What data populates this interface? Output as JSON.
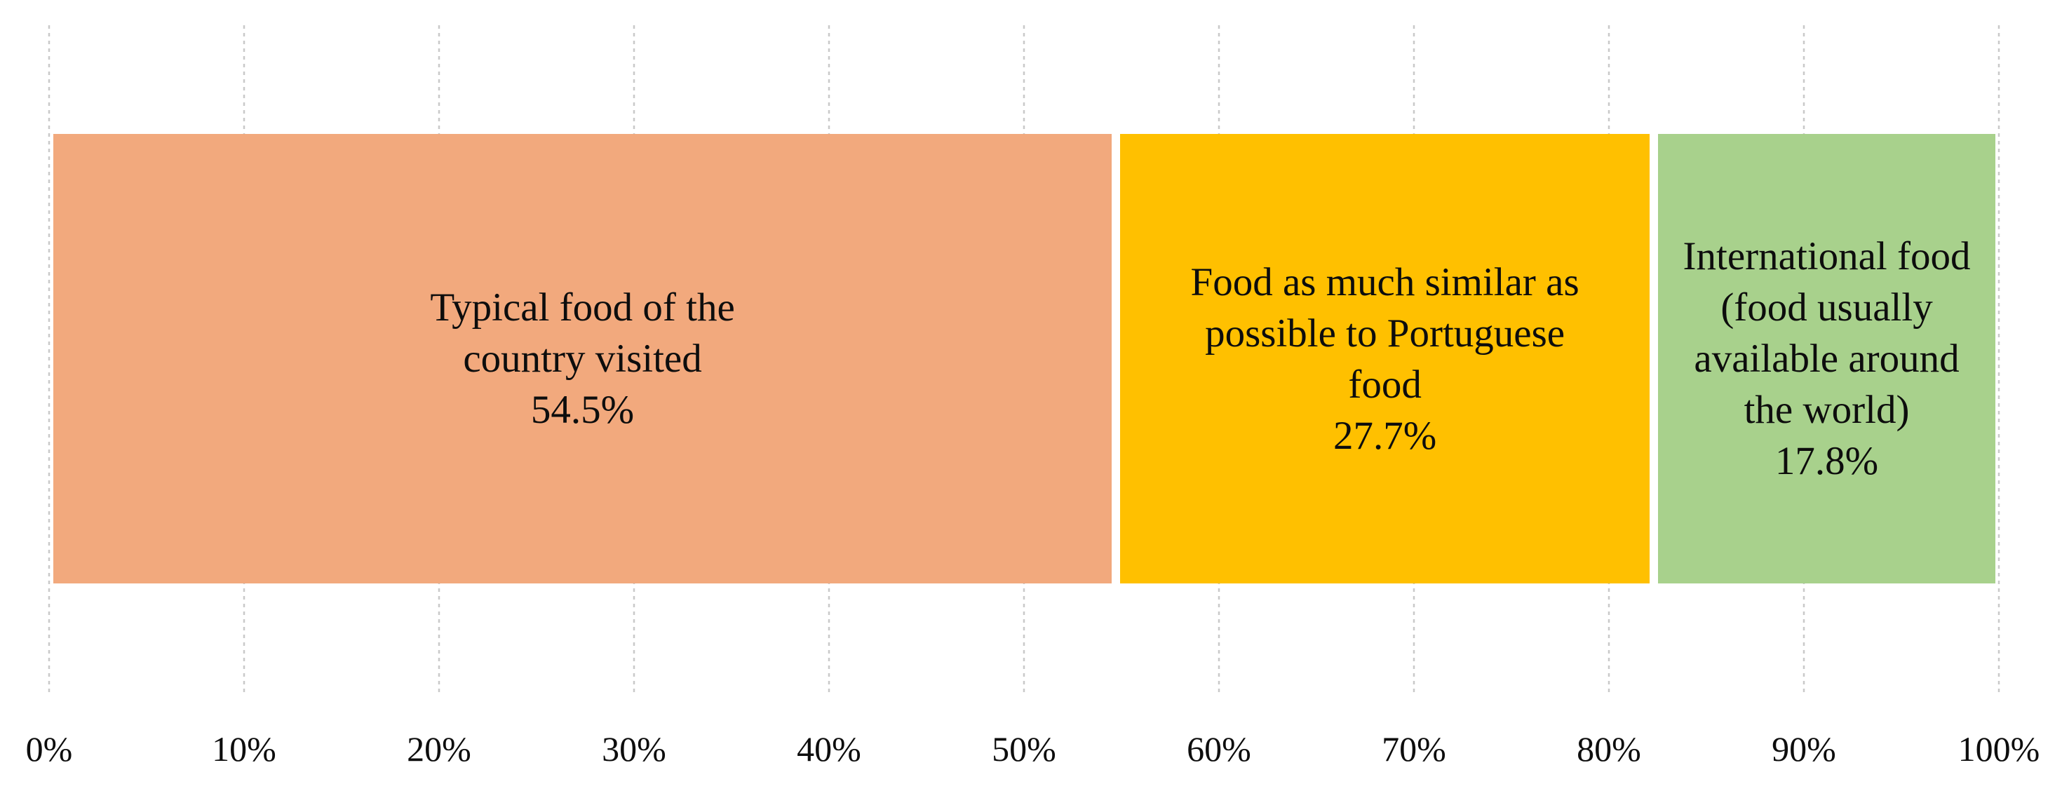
{
  "chart_data": {
    "type": "bar",
    "orientation": "horizontal",
    "stacked": true,
    "title": "",
    "legend": "none",
    "x_axis": {
      "min": 0,
      "max": 100,
      "tick_step": 10,
      "tick_labels": [
        "0%",
        "10%",
        "20%",
        "30%",
        "40%",
        "50%",
        "60%",
        "70%",
        "80%",
        "90%",
        "100%"
      ],
      "grid": "dashed-vertical"
    },
    "segments": [
      {
        "name": "Typical food of the country visited",
        "value": 54.5,
        "value_label": "54.5%",
        "display_label": "Typical food of the\ncountry visited\n54.5%",
        "color": "#F2A97D"
      },
      {
        "name": "Food as much similar as possible to Portuguese food",
        "value": 27.7,
        "value_label": "27.7%",
        "display_label": "Food as much similar as\npossible to Portuguese\nfood\n27.7%",
        "color": "#FFC000"
      },
      {
        "name": "International food (food usually available around the world)",
        "value": 17.8,
        "value_label": "17.8%",
        "display_label": "International food\n(food usually\navailable around\nthe world)\n17.8%",
        "color": "#A8D18C"
      }
    ],
    "colors": {
      "background": "#FFFFFF",
      "gridline": "#C9C9C9",
      "label_text": "#0D0D0D",
      "separator": "#FFFFFF"
    }
  }
}
